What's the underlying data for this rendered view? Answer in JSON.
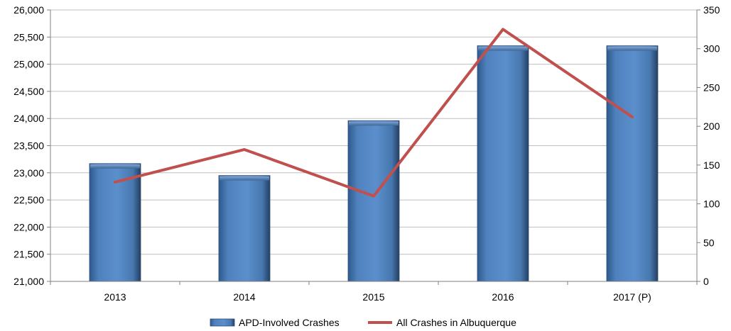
{
  "chart_data": {
    "type": "bar",
    "categories": [
      "2013",
      "2014",
      "2015",
      "2016",
      "2017 (P)"
    ],
    "series": [
      {
        "name": "APD-Involved Crashes",
        "type": "bar",
        "axis": "left",
        "color": "#4F81BD",
        "values": [
          23170,
          22950,
          23960,
          25340,
          25340
        ]
      },
      {
        "name": "All Crashes in Albuquerque",
        "type": "line",
        "axis": "right",
        "color": "#C0504D",
        "values": [
          128,
          170,
          110,
          325,
          212
        ]
      }
    ],
    "y_left": {
      "range": [
        21000,
        26000
      ],
      "ticks": [
        "21,000",
        "21,500",
        "22,000",
        "22,500",
        "23,000",
        "23,500",
        "24,000",
        "24,500",
        "25,000",
        "25,500",
        "26,000"
      ]
    },
    "y_right": {
      "range": [
        0,
        350
      ],
      "ticks": [
        "0",
        "50",
        "100",
        "150",
        "200",
        "250",
        "300",
        "350"
      ]
    },
    "grid": true,
    "legend_position": "bottom"
  }
}
